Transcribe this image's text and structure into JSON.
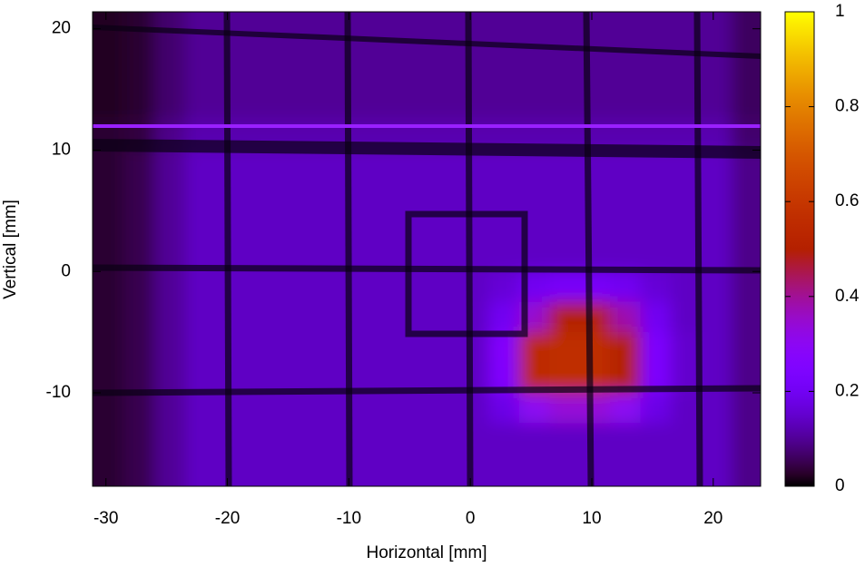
{
  "chart_data": {
    "type": "heatmap",
    "x_label": "Horizontal [mm]",
    "y_label": "Vertical [mm]",
    "xlim": [
      -31.1,
      23.9
    ],
    "ylim": [
      -17.7,
      21.4
    ],
    "xticks": [
      -30,
      -20,
      -10,
      0,
      10,
      20
    ],
    "yticks": [
      -10,
      0,
      10,
      20
    ],
    "colorbar_lim": [
      0,
      1
    ],
    "colorbar_ticks": [
      0,
      0.2,
      0.4,
      0.6,
      0.8,
      1
    ],
    "x": [
      -29.75,
      -27.25,
      -24.75,
      -22.25,
      -19.75,
      -17.25,
      -14.75,
      -12.25,
      -9.75,
      -7.25,
      -4.75,
      -2.25,
      0.25,
      2.75,
      5.25,
      7.75,
      10.25,
      12.75,
      15.25,
      17.75,
      20.25,
      22.75
    ],
    "y": [
      21.25,
      18.75,
      16.25,
      13.75,
      11.25,
      8.75,
      6.25,
      3.75,
      1.25,
      -1.25,
      -3.75,
      -6.25,
      -8.75,
      -11.25,
      -13.75,
      -16.25
    ],
    "z": [
      [
        0.02,
        0.03,
        0.07,
        0.1,
        0.1,
        0.1,
        0.1,
        0.1,
        0.1,
        0.1,
        0.1,
        0.1,
        0.1,
        0.1,
        0.1,
        0.1,
        0.1,
        0.1,
        0.1,
        0.1,
        0.1,
        0.06
      ],
      [
        0.02,
        0.03,
        0.07,
        0.1,
        0.1,
        0.1,
        0.1,
        0.1,
        0.1,
        0.1,
        0.1,
        0.1,
        0.1,
        0.1,
        0.1,
        0.1,
        0.1,
        0.1,
        0.1,
        0.1,
        0.1,
        0.06
      ],
      [
        0.02,
        0.03,
        0.07,
        0.1,
        0.1,
        0.1,
        0.1,
        0.1,
        0.1,
        0.1,
        0.1,
        0.1,
        0.1,
        0.1,
        0.1,
        0.1,
        0.1,
        0.1,
        0.1,
        0.1,
        0.1,
        0.06
      ],
      [
        0.02,
        0.03,
        0.07,
        0.1,
        0.1,
        0.1,
        0.1,
        0.1,
        0.1,
        0.1,
        0.1,
        0.1,
        0.1,
        0.1,
        0.1,
        0.1,
        0.1,
        0.1,
        0.1,
        0.1,
        0.1,
        0.06
      ],
      [
        0.03,
        0.04,
        0.09,
        0.12,
        0.12,
        0.12,
        0.12,
        0.12,
        0.12,
        0.12,
        0.12,
        0.12,
        0.12,
        0.12,
        0.12,
        0.12,
        0.12,
        0.12,
        0.12,
        0.12,
        0.12,
        0.07
      ],
      [
        0.03,
        0.05,
        0.1,
        0.14,
        0.14,
        0.14,
        0.14,
        0.14,
        0.14,
        0.14,
        0.14,
        0.14,
        0.14,
        0.14,
        0.14,
        0.14,
        0.14,
        0.14,
        0.14,
        0.14,
        0.14,
        0.09
      ],
      [
        0.03,
        0.05,
        0.1,
        0.14,
        0.14,
        0.14,
        0.14,
        0.14,
        0.14,
        0.14,
        0.14,
        0.14,
        0.14,
        0.14,
        0.14,
        0.14,
        0.14,
        0.14,
        0.14,
        0.14,
        0.14,
        0.09
      ],
      [
        0.03,
        0.05,
        0.1,
        0.14,
        0.14,
        0.14,
        0.14,
        0.14,
        0.14,
        0.14,
        0.14,
        0.14,
        0.14,
        0.14,
        0.14,
        0.14,
        0.14,
        0.14,
        0.14,
        0.14,
        0.14,
        0.09
      ],
      [
        0.03,
        0.05,
        0.1,
        0.14,
        0.14,
        0.14,
        0.14,
        0.14,
        0.14,
        0.14,
        0.14,
        0.14,
        0.14,
        0.14,
        0.14,
        0.14,
        0.14,
        0.14,
        0.14,
        0.14,
        0.14,
        0.09
      ],
      [
        0.03,
        0.05,
        0.1,
        0.14,
        0.14,
        0.14,
        0.14,
        0.14,
        0.14,
        0.14,
        0.14,
        0.14,
        0.14,
        0.16,
        0.2,
        0.22,
        0.22,
        0.2,
        0.16,
        0.14,
        0.14,
        0.09
      ],
      [
        0.03,
        0.05,
        0.1,
        0.14,
        0.14,
        0.14,
        0.14,
        0.14,
        0.14,
        0.14,
        0.14,
        0.14,
        0.14,
        0.2,
        0.35,
        0.5,
        0.5,
        0.38,
        0.2,
        0.14,
        0.14,
        0.09
      ],
      [
        0.03,
        0.05,
        0.1,
        0.14,
        0.14,
        0.14,
        0.14,
        0.14,
        0.14,
        0.14,
        0.14,
        0.14,
        0.14,
        0.26,
        0.55,
        0.56,
        0.56,
        0.5,
        0.24,
        0.15,
        0.14,
        0.09
      ],
      [
        0.03,
        0.05,
        0.1,
        0.14,
        0.14,
        0.14,
        0.14,
        0.14,
        0.14,
        0.14,
        0.14,
        0.14,
        0.14,
        0.25,
        0.55,
        0.56,
        0.56,
        0.5,
        0.24,
        0.15,
        0.14,
        0.09
      ],
      [
        0.03,
        0.05,
        0.1,
        0.14,
        0.14,
        0.14,
        0.14,
        0.14,
        0.14,
        0.14,
        0.14,
        0.14,
        0.14,
        0.18,
        0.3,
        0.34,
        0.34,
        0.3,
        0.18,
        0.14,
        0.14,
        0.09
      ],
      [
        0.03,
        0.05,
        0.1,
        0.14,
        0.14,
        0.14,
        0.14,
        0.14,
        0.14,
        0.14,
        0.14,
        0.14,
        0.14,
        0.14,
        0.14,
        0.14,
        0.14,
        0.14,
        0.14,
        0.14,
        0.14,
        0.09
      ],
      [
        0.03,
        0.05,
        0.1,
        0.14,
        0.14,
        0.14,
        0.14,
        0.14,
        0.14,
        0.14,
        0.14,
        0.14,
        0.14,
        0.14,
        0.14,
        0.14,
        0.14,
        0.14,
        0.14,
        0.14,
        0.14,
        0.09
      ]
    ]
  }
}
